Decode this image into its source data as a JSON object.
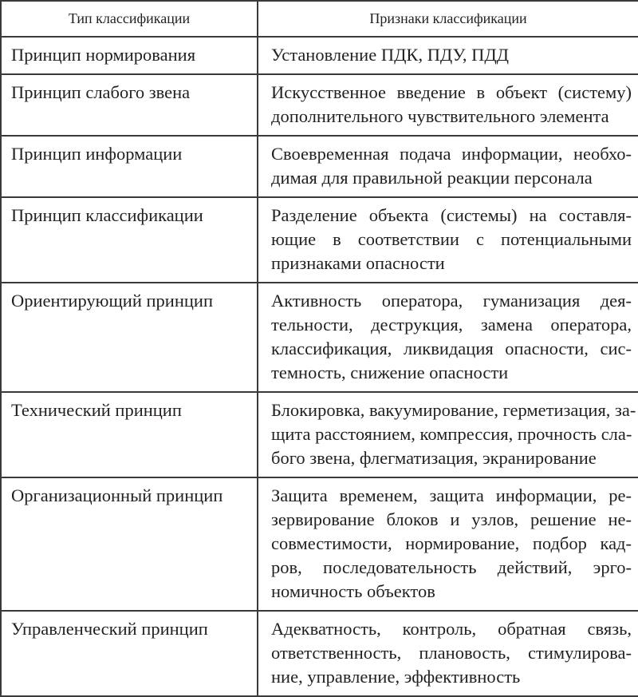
{
  "table": {
    "headers": [
      "Тип классификации",
      "Признаки классификации"
    ],
    "rows": [
      {
        "type": "Принцип нормирования",
        "features": [
          "Установление ПДК, ПДУ, ПДД"
        ]
      },
      {
        "type": "Принцип слабого звена",
        "features": [
          "Искусственное введение в объект (систему)",
          "дополнительного чувствительного элемента"
        ]
      },
      {
        "type": "Принцип информации",
        "features": [
          "Своевременная подача информации, необхо-",
          "димая для правильной реакции персонала"
        ]
      },
      {
        "type": "Принцип классификации",
        "features": [
          "Разделение объекта (системы) на составля-",
          "ющие в соответствии с потенциальными",
          "признаками опасности"
        ]
      },
      {
        "type": "Ориентирующий принцип",
        "features": [
          "Активность оператора, гуманизация дея-",
          "тельности, деструкция, замена оператора,",
          "классификация, ликвидация опасности, сис-",
          "темность, снижение опасности"
        ]
      },
      {
        "type": "Технический принцип",
        "features": [
          "Блокировка, вакуумирование, герметизация, за-",
          "щита расстоянием, компрессия, прочность сла-",
          "бого звена, флегматизация, экранирование"
        ]
      },
      {
        "type": "Организационный принцип",
        "features": [
          "Защита временем, защита информации, ре-",
          "зервирование блоков и узлов, решение не-",
          "совместимости, нормирование, подбор кад-",
          "ров, последовательность действий, эрго-",
          "номичность объектов"
        ]
      },
      {
        "type": "Управленческий принцип",
        "features": [
          "Адекватность, контроль, обратная связь,",
          "ответственность, плановость, стимулирова-",
          "ние, управление, эффективность"
        ]
      }
    ]
  }
}
